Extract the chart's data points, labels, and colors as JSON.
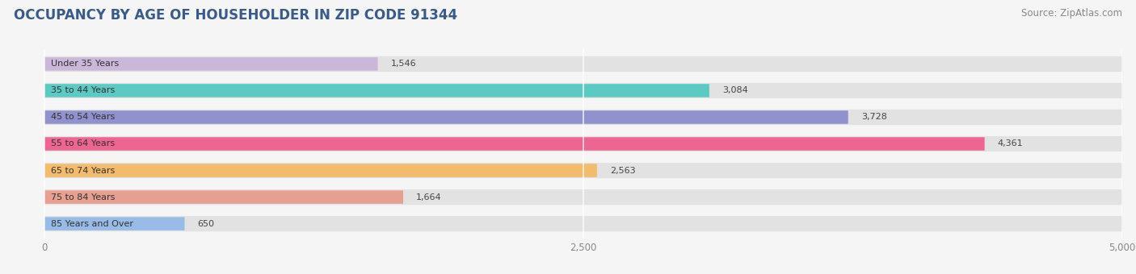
{
  "title": "OCCUPANCY BY AGE OF HOUSEHOLDER IN ZIP CODE 91344",
  "source": "Source: ZipAtlas.com",
  "categories": [
    "Under 35 Years",
    "35 to 44 Years",
    "45 to 54 Years",
    "55 to 64 Years",
    "65 to 74 Years",
    "75 to 84 Years",
    "85 Years and Over"
  ],
  "values": [
    1546,
    3084,
    3728,
    4361,
    2563,
    1664,
    650
  ],
  "value_labels": [
    "1,546",
    "3,084",
    "3,728",
    "4,361",
    "2,563",
    "1,664",
    "650"
  ],
  "bar_colors": [
    "#c9b3d9",
    "#4ec8c0",
    "#8888cc",
    "#f05888",
    "#f5b860",
    "#e89888",
    "#90b8e8"
  ],
  "xlim_min": -180,
  "xlim_max": 5000,
  "xticks": [
    0,
    2500,
    5000
  ],
  "xtick_labels": [
    "0",
    "2,500",
    "5,000"
  ],
  "background_color": "#f5f5f5",
  "bar_bg_color": "#e2e2e2",
  "title_color": "#3a5a8a",
  "title_fontsize": 12,
  "source_fontsize": 8.5,
  "label_fontsize": 8,
  "value_fontsize": 8
}
